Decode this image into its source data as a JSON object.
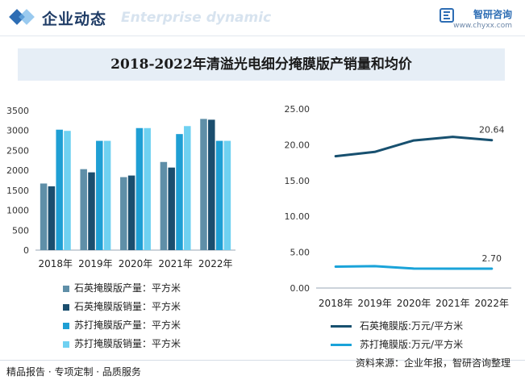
{
  "header": {
    "title": "企业动态",
    "subtitle": "Enterprise dynamic",
    "brand_name": "智研咨询",
    "brand_url": "www.chyxx.com"
  },
  "chart_title": "2018-2022年清溢光电细分掩膜版产销量和均价",
  "chart_data": [
    {
      "type": "bar",
      "categories": [
        "2018年",
        "2019年",
        "2020年",
        "2021年",
        "2022年"
      ],
      "series": [
        {
          "name": "石英掩膜版产量：平方米",
          "color": "#5f8fa8",
          "values": [
            1670,
            2030,
            1830,
            2210,
            3290
          ]
        },
        {
          "name": "石英掩膜版销量：平方米",
          "color": "#1b4e6e",
          "values": [
            1600,
            1950,
            1870,
            2070,
            3270
          ]
        },
        {
          "name": "苏打掩膜版产量：平方米",
          "color": "#1f9fd4",
          "values": [
            3020,
            2740,
            3060,
            2910,
            2740
          ]
        },
        {
          "name": "苏打掩膜版销量：平方米",
          "color": "#6fd1f1",
          "values": [
            2990,
            2740,
            3060,
            3110,
            2740
          ]
        }
      ],
      "ylim": [
        0,
        3500
      ],
      "yticks": [
        "0",
        "500",
        "1000",
        "1500",
        "2000",
        "2500",
        "3000",
        "3500"
      ],
      "xlabel": "",
      "ylabel": ""
    },
    {
      "type": "line",
      "x": [
        "2018年",
        "2019年",
        "2020年",
        "2021年",
        "2022年"
      ],
      "series": [
        {
          "name": "石英掩膜版:万元/平方米",
          "color": "#17506f",
          "values": [
            18.4,
            19.0,
            20.6,
            21.1,
            20.64
          ]
        },
        {
          "name": "苏打掩膜版:万元/平方米",
          "color": "#1aa3d9",
          "values": [
            2.98,
            3.05,
            2.72,
            2.7,
            2.7
          ]
        }
      ],
      "data_labels": [
        "20.64",
        "2.70"
      ],
      "ylim": [
        0,
        25
      ],
      "yticks": [
        "0.00",
        "5.00",
        "10.00",
        "15.00",
        "20.00",
        "25.00"
      ],
      "xlabel": "",
      "ylabel": ""
    }
  ],
  "footer": {
    "left": "精品报告 · 专项定制 · 品质服务",
    "right": "资料来源：企业年报，智研咨询整理"
  }
}
